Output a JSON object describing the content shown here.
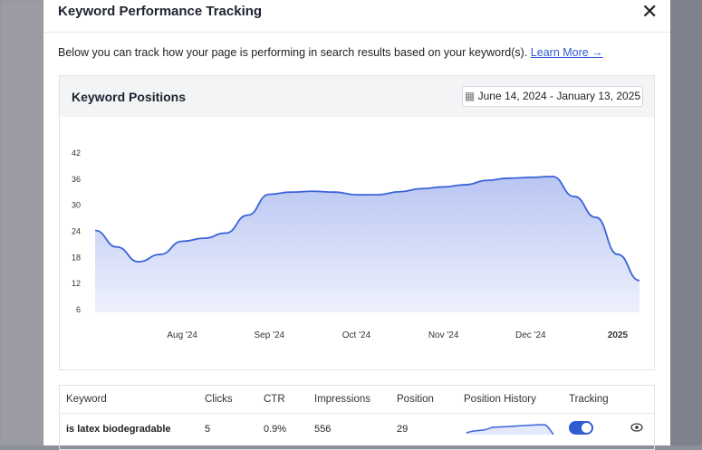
{
  "modal": {
    "title": "Keyword Performance Tracking",
    "description": "Below you can track how your page is performing in search results based on your keyword(s).",
    "learn_more": "Learn More →"
  },
  "chart_data": {
    "type": "line",
    "title": "Keyword Positions",
    "date_range": "June 14, 2024 - January 13, 2025",
    "categories": [
      null,
      null,
      null,
      null,
      "Aug '24",
      null,
      null,
      null,
      "Sep '24",
      null,
      null,
      null,
      "Oct '24",
      null,
      null,
      null,
      "Nov '24",
      null,
      null,
      null,
      "Dec '24",
      null,
      null,
      null,
      "2025",
      null
    ],
    "values": [
      24,
      20.2,
      16.8,
      18.5,
      21.5,
      22.2,
      23.4,
      27.5,
      32.3,
      32.8,
      33,
      32.8,
      32.2,
      32.2,
      32.9,
      33.6,
      34,
      34.5,
      35.5,
      36,
      36.2,
      36.4,
      31.8,
      27,
      18.5,
      12.5
    ],
    "color": "#3b63d8",
    "ylim": [
      6,
      42
    ],
    "yticks": [
      6,
      12,
      18,
      24,
      30,
      36,
      42
    ],
    "grid": false
  },
  "table": {
    "headers": [
      "Keyword",
      "Clicks",
      "CTR",
      "Impressions",
      "Position",
      "Position History",
      "Tracking"
    ],
    "rows": [
      [
        "is latex biodegradable",
        5,
        "0.9%",
        556,
        29
      ]
    ]
  }
}
